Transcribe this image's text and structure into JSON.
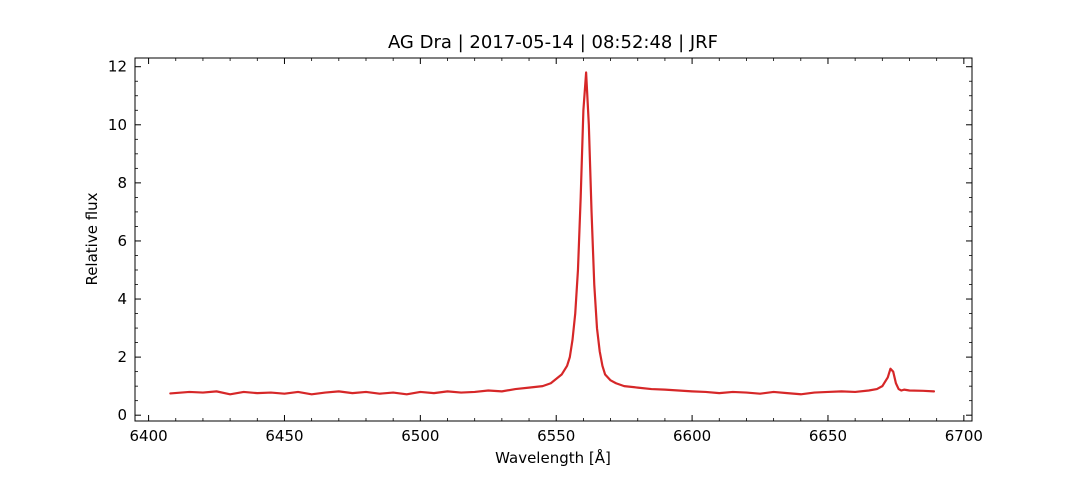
{
  "chart_data": {
    "type": "line",
    "title": "AG Dra | 2017-05-14 | 08:52:48 | JRF",
    "xlabel": "Wavelength [Å]",
    "ylabel": "Relative flux",
    "xlim": [
      6395,
      6703
    ],
    "ylim": [
      -0.2,
      12.3
    ],
    "x_ticks": [
      6400,
      6450,
      6500,
      6550,
      6600,
      6650,
      6700
    ],
    "y_ticks": [
      0,
      2,
      4,
      6,
      8,
      10,
      12
    ],
    "grid": false,
    "line_color": "#d62728",
    "series": [
      {
        "x": [
          6408,
          6415,
          6420,
          6425,
          6430,
          6435,
          6440,
          6445,
          6450,
          6455,
          6460,
          6465,
          6470,
          6475,
          6480,
          6485,
          6490,
          6495,
          6500,
          6505,
          6510,
          6515,
          6520,
          6525,
          6530,
          6535,
          6540,
          6545,
          6548,
          6550,
          6552,
          6554,
          6555,
          6556,
          6557,
          6558,
          6559,
          6560,
          6561,
          6562,
          6563,
          6564,
          6565,
          6566,
          6567,
          6568,
          6570,
          6572,
          6575,
          6580,
          6585,
          6590,
          6595,
          6600,
          6605,
          6610,
          6615,
          6620,
          6625,
          6630,
          6635,
          6640,
          6645,
          6650,
          6655,
          6660,
          6665,
          6668,
          6670,
          6672,
          6673,
          6674,
          6675,
          6676,
          6677,
          6678,
          6680,
          6685,
          6689
        ],
        "y": [
          0.75,
          0.8,
          0.78,
          0.82,
          0.72,
          0.8,
          0.76,
          0.78,
          0.74,
          0.8,
          0.72,
          0.78,
          0.82,
          0.76,
          0.8,
          0.74,
          0.78,
          0.72,
          0.8,
          0.76,
          0.82,
          0.78,
          0.8,
          0.85,
          0.82,
          0.9,
          0.95,
          1.0,
          1.1,
          1.25,
          1.4,
          1.7,
          2.0,
          2.6,
          3.5,
          5.0,
          7.5,
          10.5,
          11.8,
          10.0,
          7.0,
          4.5,
          3.0,
          2.2,
          1.7,
          1.4,
          1.2,
          1.1,
          1.0,
          0.95,
          0.9,
          0.88,
          0.85,
          0.82,
          0.8,
          0.76,
          0.8,
          0.78,
          0.74,
          0.8,
          0.76,
          0.72,
          0.78,
          0.8,
          0.82,
          0.8,
          0.85,
          0.9,
          1.0,
          1.3,
          1.6,
          1.5,
          1.1,
          0.9,
          0.85,
          0.88,
          0.85,
          0.84,
          0.82
        ]
      }
    ]
  }
}
